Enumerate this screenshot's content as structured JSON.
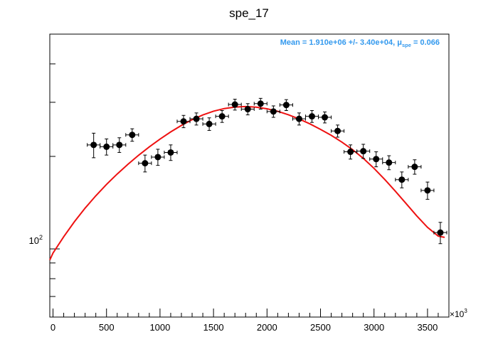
{
  "chart_data": {
    "type": "scatter",
    "title": "spe_17",
    "xlabel": "",
    "ylabel": "",
    "x_multiplier_label": "×10",
    "x_multiplier_exp": "3",
    "y_scale": "log",
    "xlim": [
      -30,
      3700
    ],
    "ylim": [
      60,
      500
    ],
    "x_ticks": [
      0,
      500,
      1000,
      1500,
      2000,
      2500,
      3000,
      3500
    ],
    "x_tick_labels": [
      "0",
      "500",
      "1000",
      "1500",
      "2000",
      "2500",
      "3000",
      "3500"
    ],
    "y_label_tick": {
      "value": 100,
      "base": "10",
      "exp": "2"
    },
    "grid": false,
    "annotation": {
      "prefix": "Mean = 1.910e+06 +/- 3.40e+04, μ",
      "subscript": "spe",
      "suffix": " = 0.066",
      "color": "#3399ee"
    },
    "series": [
      {
        "marker_color": "#000000",
        "x": [
          380,
          500,
          620,
          740,
          860,
          980,
          1100,
          1220,
          1340,
          1460,
          1580,
          1700,
          1820,
          1940,
          2060,
          2180,
          2300,
          2420,
          2540,
          2660,
          2780,
          2900,
          3020,
          3140,
          3260,
          3380,
          3500,
          3620
        ],
        "y": [
          218,
          215,
          218,
          235,
          190,
          199,
          206,
          260,
          265,
          255,
          270,
          295,
          285,
          297,
          280,
          294,
          265,
          270,
          268,
          242,
          207,
          208,
          196,
          191,
          168,
          185,
          155,
          113
        ],
        "y_err": [
          20,
          13,
          12,
          11,
          12,
          12,
          12,
          12,
          12,
          12,
          12,
          12,
          12,
          12,
          12,
          12,
          12,
          12,
          11,
          11,
          11,
          11,
          11,
          10,
          10,
          10,
          10,
          9
        ],
        "x_err": 60
      },
      {
        "type": "line",
        "line_color": "#ee1111",
        "x": [
          -30,
          0,
          100,
          200,
          300,
          400,
          500,
          600,
          700,
          800,
          900,
          1000,
          1100,
          1200,
          1300,
          1400,
          1500,
          1600,
          1700,
          1800,
          1900,
          2000,
          2100,
          2200,
          2300,
          2400,
          2500,
          2600,
          2700,
          2800,
          2900,
          3000,
          3100,
          3200,
          3300,
          3400,
          3500,
          3600,
          3660
        ],
        "y": [
          92,
          96.9,
          109.6,
          122.6,
          135.7,
          148.9,
          162.1,
          175.3,
          188.5,
          201.7,
          214.8,
          227.7,
          240.3,
          252.3,
          263.3,
          272.9,
          280.7,
          286.2,
          289.5,
          290.5,
          289.2,
          285.8,
          280.4,
          273.3,
          264.8,
          255.2,
          244.9,
          234.1,
          222.6,
          210.4,
          197.0,
          182.9,
          168.3,
          154.0,
          140.5,
          128.0,
          117.5,
          110.0,
          109.0
        ]
      }
    ]
  }
}
